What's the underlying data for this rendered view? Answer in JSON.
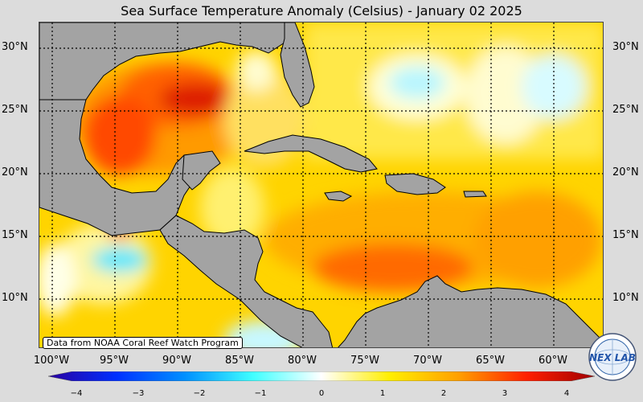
{
  "title": "Sea Surface Temperature Anomaly (Celsius) - January 02 2025",
  "latitudes": [
    "30°N",
    "25°N",
    "20°N",
    "15°N",
    "10°N"
  ],
  "longitudes": [
    "100°W",
    "95°W",
    "90°W",
    "85°W",
    "80°W",
    "75°W",
    "70°W",
    "65°W",
    "60°W"
  ],
  "credit": "Data from NOAA Coral Reef Watch Program",
  "colorbar": {
    "ticks": [
      "−4",
      "−3",
      "−2",
      "−1",
      "0",
      "1",
      "2",
      "3",
      "4"
    ],
    "range": [
      -4,
      4
    ],
    "colors": [
      "#2a00a0",
      "#0030ff",
      "#0090ff",
      "#40ffff",
      "#ffffff",
      "#ffee00",
      "#ffa000",
      "#ff2000",
      "#a00000"
    ]
  },
  "logo": {
    "text": "NEX LAB",
    "icon": "nexlab-globe-logo"
  },
  "colors": {
    "land": "#a3a3a3",
    "ocean_warm": "#ffd200",
    "hot": "#e02000",
    "cool": "#bff8ff"
  }
}
